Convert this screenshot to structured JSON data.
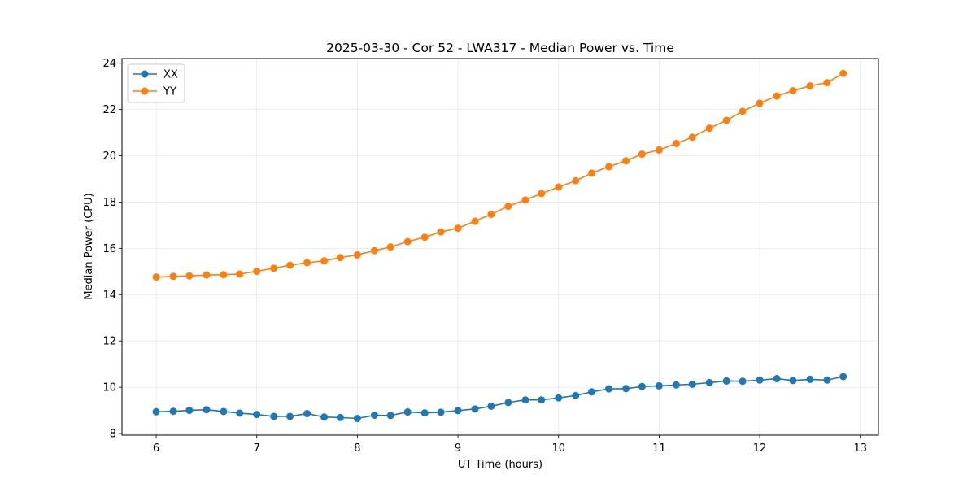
{
  "chart_data": {
    "type": "line",
    "title": "2025-03-30 - Cor 52 - LWA317 - Median Power vs. Time",
    "xlabel": "UT Time (hours)",
    "ylabel": "Median Power (CPU)",
    "xlim": [
      5.66,
      13.18
    ],
    "ylim": [
      7.93,
      24.2
    ],
    "xticks": [
      6,
      7,
      8,
      9,
      10,
      11,
      12,
      13
    ],
    "yticks": [
      8,
      10,
      12,
      14,
      16,
      18,
      20,
      22,
      24
    ],
    "grid": true,
    "legend_position": "upper-left",
    "x": [
      6.0,
      6.17,
      6.33,
      6.5,
      6.67,
      6.83,
      7.0,
      7.17,
      7.33,
      7.5,
      7.67,
      7.83,
      8.0,
      8.17,
      8.33,
      8.5,
      8.67,
      8.83,
      9.0,
      9.17,
      9.33,
      9.5,
      9.67,
      9.83,
      10.0,
      10.17,
      10.33,
      10.5,
      10.67,
      10.83,
      11.0,
      11.17,
      11.33,
      11.5,
      11.67,
      11.83,
      12.0,
      12.17,
      12.33,
      12.5,
      12.67,
      12.83
    ],
    "series": [
      {
        "name": "XX",
        "color": "#1f77b4",
        "values": [
          8.94,
          8.96,
          9.0,
          9.03,
          8.95,
          8.88,
          8.82,
          8.74,
          8.74,
          8.86,
          8.71,
          8.69,
          8.65,
          8.79,
          8.78,
          8.93,
          8.89,
          8.92,
          8.99,
          9.06,
          9.18,
          9.34,
          9.45,
          9.45,
          9.54,
          9.64,
          9.8,
          9.93,
          9.94,
          10.03,
          10.06,
          10.1,
          10.13,
          10.2,
          10.27,
          10.26,
          10.31,
          10.37,
          10.29,
          10.34,
          10.31,
          10.46
        ]
      },
      {
        "name": "YY",
        "color": "#ff7f0e",
        "values": [
          14.76,
          14.79,
          14.81,
          14.85,
          14.86,
          14.89,
          15.01,
          15.14,
          15.27,
          15.38,
          15.46,
          15.6,
          15.72,
          15.9,
          16.06,
          16.29,
          16.48,
          16.71,
          16.87,
          17.17,
          17.47,
          17.82,
          18.09,
          18.37,
          18.65,
          18.92,
          19.25,
          19.53,
          19.78,
          20.07,
          20.25,
          20.53,
          20.8,
          21.19,
          21.53,
          21.92,
          22.27,
          22.58,
          22.81,
          23.02,
          23.16,
          23.56
        ]
      }
    ]
  }
}
